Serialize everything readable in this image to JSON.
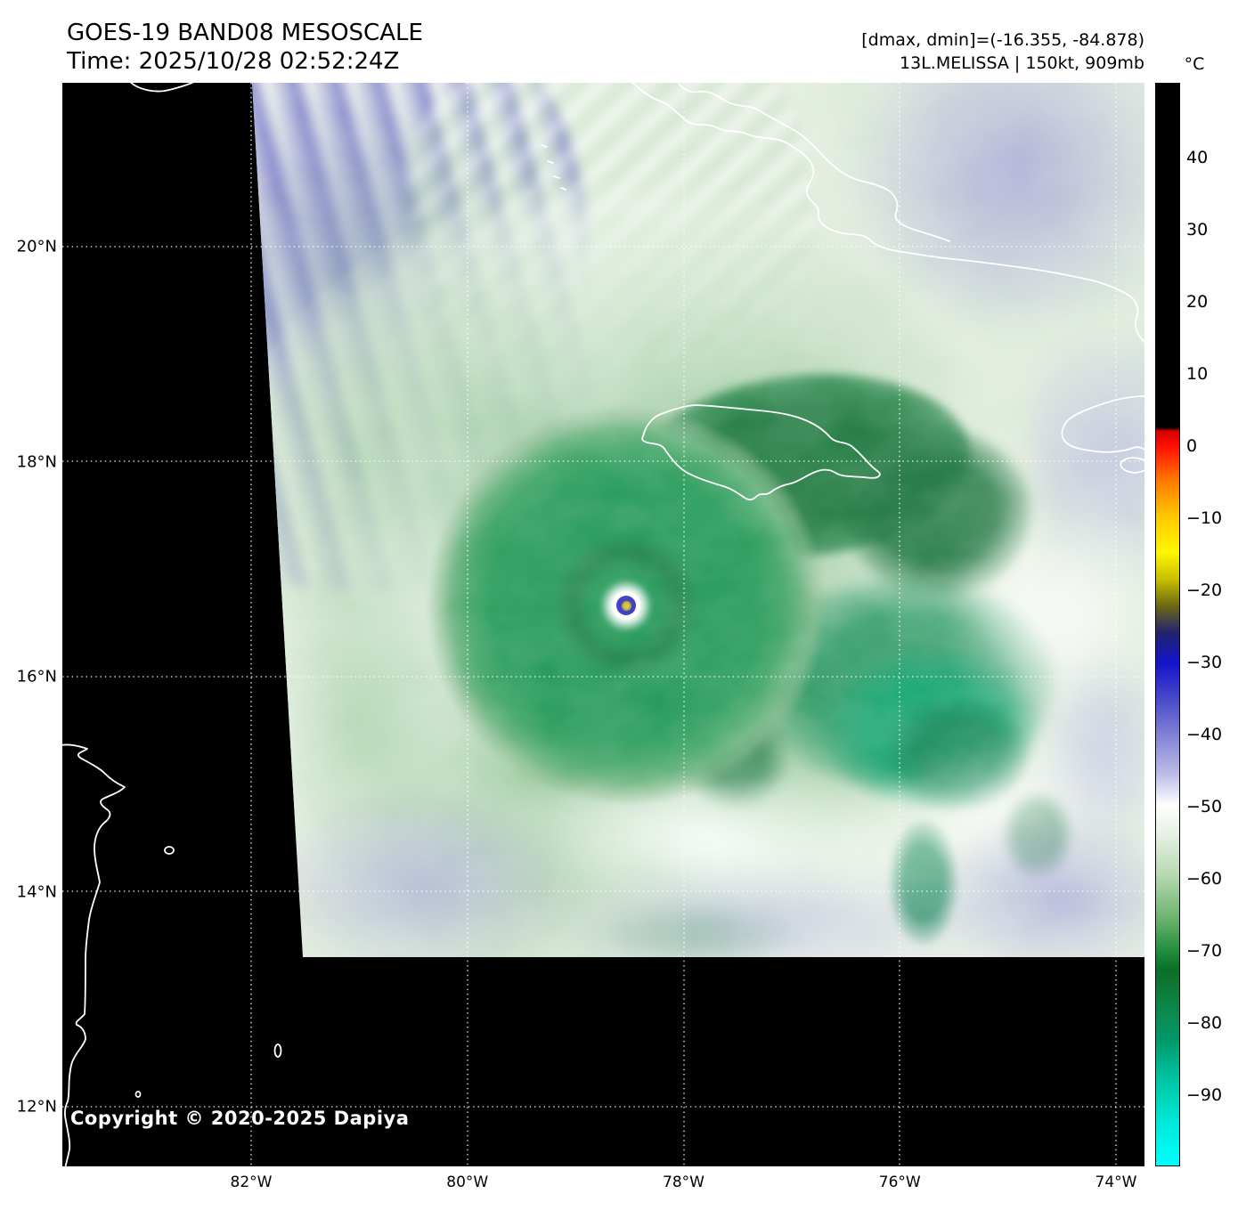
{
  "header": {
    "title_line1": "GOES-19 BAND08 MESOSCALE",
    "title_line2": "Time: 2025/10/28 02:52:24Z",
    "info_line1": "[dmax, dmin]=(-16.355, -84.878)",
    "info_line2": "13L.MELISSA | 150kt, 909mb"
  },
  "storm": {
    "designation": "13L",
    "name": "MELISSA",
    "intensity": "150kt",
    "pressure": "909mb",
    "dmax": "-16.355",
    "dmin": "-84.878"
  },
  "colorbar": {
    "unit": "°C",
    "ticks": [
      40,
      30,
      20,
      10,
      0,
      -10,
      -20,
      -30,
      -40,
      -50,
      -60,
      -70,
      -80,
      -90
    ]
  },
  "axes": {
    "lat": [
      "20°N",
      "18°N",
      "16°N",
      "14°N",
      "12°N"
    ],
    "lon": [
      "82°W",
      "80°W",
      "78°W",
      "76°W",
      "74°W"
    ]
  },
  "map": {
    "copyright": "Copyright © 2020-2025 Dapiya"
  }
}
